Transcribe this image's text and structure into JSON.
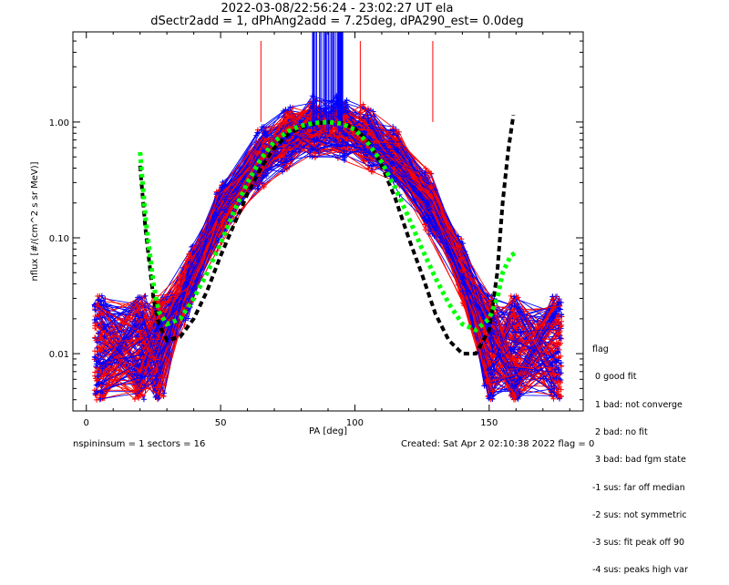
{
  "header": {
    "title_line1": "2022-03-08/22:56:24 - 23:02:27 UT ela",
    "title_line2": "dSectr2add = 1, dPhAng2add = 7.25deg, dPA290_est=   0.0deg"
  },
  "footer": {
    "left": "nspininsum =  1  sectors = 16",
    "right": "Created: Sat Apr  2 02:10:38 2022   flag = 0"
  },
  "legend": {
    "title": "flag",
    "items": [
      " 0 good fit",
      " 1 bad: not converge",
      " 2 bad: no fit",
      " 3 bad: bad fgm state",
      "-1 sus: far off median",
      "-2 sus: not symmetric",
      "-3 sus: fit peak off 90",
      "-4 sus: peaks high var"
    ]
  },
  "chart_data": {
    "type": "line",
    "xlabel": "PA [deg]",
    "ylabel": "nflux [#/(cm^2 s sr MeV)]",
    "xlim": [
      -5,
      185
    ],
    "ylim": [
      0.0032,
      6.0
    ],
    "yscale": "log",
    "xticks": [
      0,
      50,
      100,
      150
    ],
    "yticks": [
      0.01,
      0.1,
      1.0
    ],
    "ytick_labels": [
      "0.01",
      "0.10",
      "1.00"
    ],
    "colors": {
      "red": "#ff0000",
      "blue": "#0000ff",
      "black": "#000000",
      "green": "#00ff00"
    },
    "series": [
      {
        "color": "black",
        "style": "dashed",
        "x": [
          20,
          22,
          25,
          27,
          30,
          35,
          40,
          45,
          50,
          55,
          60,
          65,
          70,
          75,
          80,
          85,
          90,
          95,
          100,
          105,
          110,
          115,
          120,
          125,
          130,
          135,
          140,
          145,
          150,
          153,
          155,
          157,
          159
        ],
        "y": [
          0.42,
          0.12,
          0.03,
          0.018,
          0.013,
          0.014,
          0.02,
          0.035,
          0.07,
          0.13,
          0.24,
          0.4,
          0.6,
          0.78,
          0.9,
          0.97,
          1.0,
          0.98,
          0.88,
          0.68,
          0.42,
          0.22,
          0.1,
          0.048,
          0.022,
          0.013,
          0.01,
          0.01,
          0.016,
          0.05,
          0.2,
          0.55,
          1.15
        ]
      },
      {
        "color": "green",
        "style": "dotted",
        "x": [
          20,
          22,
          25,
          27,
          30,
          35,
          40,
          45,
          50,
          55,
          60,
          65,
          70,
          75,
          80,
          85,
          90,
          95,
          100,
          105,
          110,
          115,
          120,
          125,
          130,
          135,
          140,
          145,
          150,
          153,
          155,
          158,
          160
        ],
        "y": [
          0.55,
          0.15,
          0.04,
          0.023,
          0.018,
          0.02,
          0.03,
          0.05,
          0.09,
          0.17,
          0.3,
          0.48,
          0.68,
          0.83,
          0.93,
          0.98,
          1.0,
          0.97,
          0.86,
          0.65,
          0.45,
          0.27,
          0.15,
          0.08,
          0.045,
          0.027,
          0.018,
          0.016,
          0.02,
          0.03,
          0.05,
          0.07,
          0.075
        ]
      }
    ]
  }
}
